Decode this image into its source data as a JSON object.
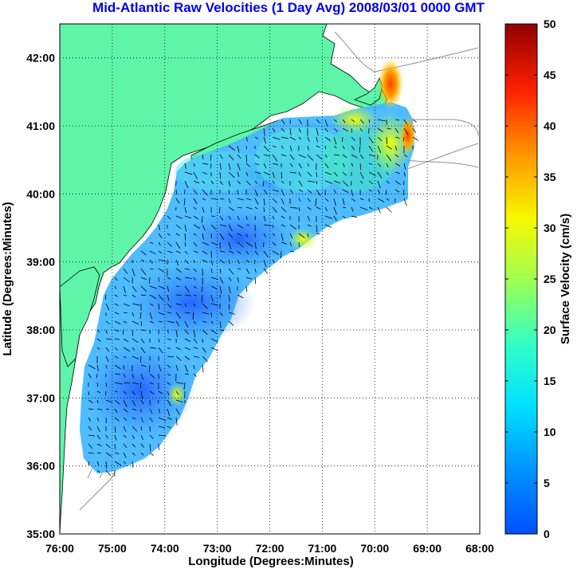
{
  "title": "Mid-Atlantic Raw Velocities (1 Day Avg) 2008/03/01 0000 GMT",
  "x_axis": {
    "label": "Longitude (Degrees:Minutes)",
    "ticks": [
      "76:00",
      "75:00",
      "74:00",
      "73:00",
      "72:00",
      "71:00",
      "70:00",
      "69:00",
      "68:00"
    ]
  },
  "y_axis": {
    "label": "Latitude (Degrees:Minutes)",
    "ticks": [
      "35:00",
      "36:00",
      "37:00",
      "38:00",
      "39:00",
      "40:00",
      "41:00",
      "42:00"
    ]
  },
  "colorbar": {
    "label": "Surface Velocity (cm/s)",
    "ticks": [
      "0",
      "5",
      "10",
      "15",
      "20",
      "25",
      "30",
      "35",
      "40",
      "45",
      "50"
    ],
    "range": [
      0,
      50
    ],
    "colormap": "jet"
  },
  "colors": {
    "land": "#5ff5a8",
    "title": "#0000ee",
    "arrows": "#000000",
    "bathymetry": "#909090"
  },
  "map_extent": {
    "lon": [
      -76,
      -68
    ],
    "lat": [
      35,
      42.5
    ]
  },
  "grid": true
}
